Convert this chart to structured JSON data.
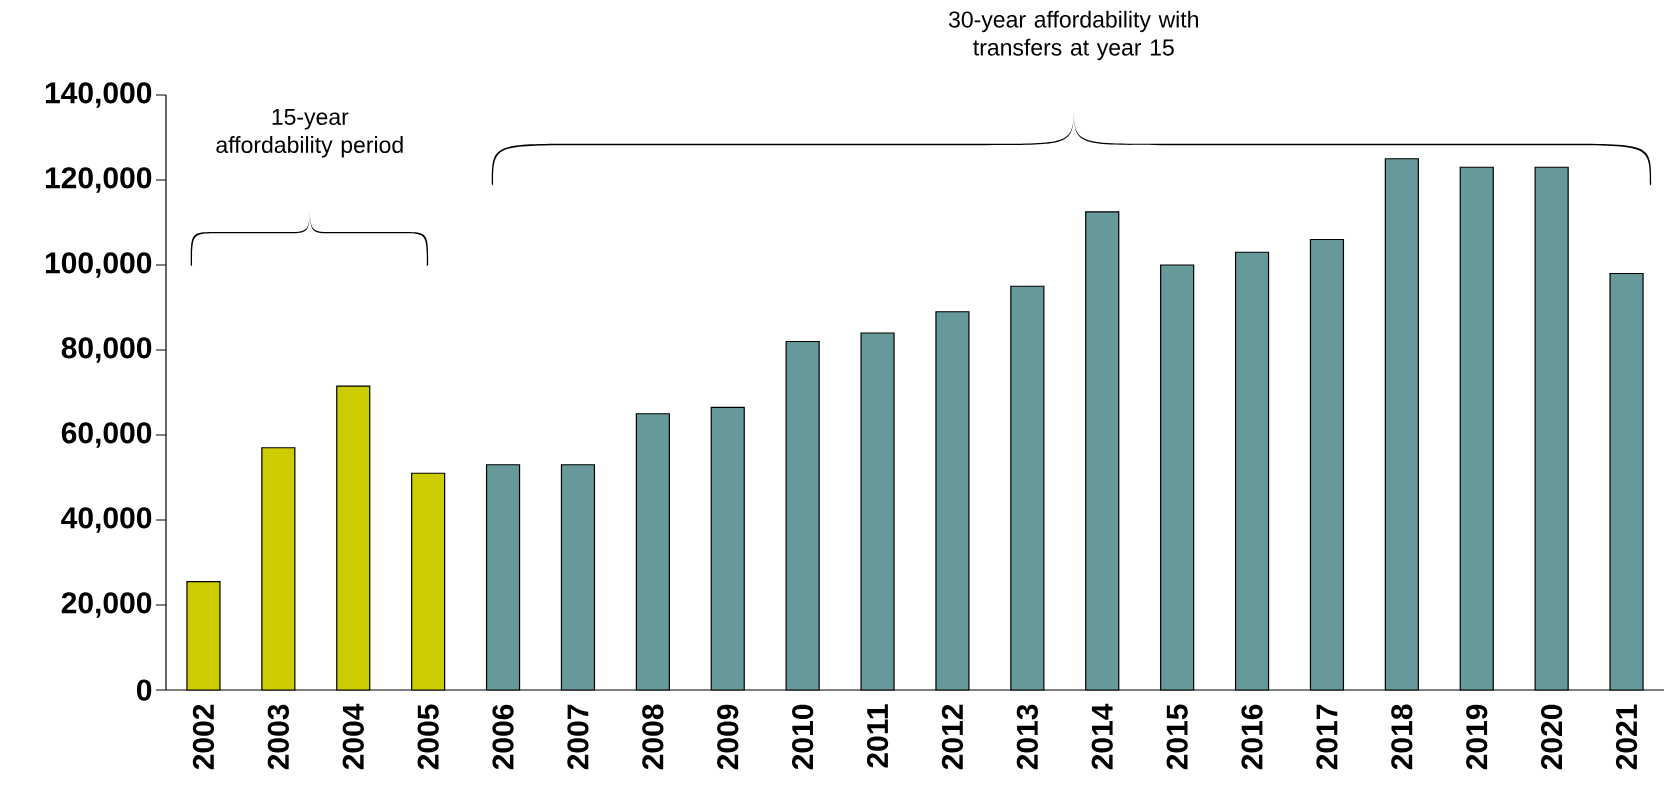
{
  "chart_data": {
    "type": "bar",
    "categories": [
      "2002",
      "2003",
      "2004",
      "2005",
      "2006",
      "2007",
      "2008",
      "2009",
      "2010",
      "2011",
      "2012",
      "2013",
      "2014",
      "2015",
      "2016",
      "2017",
      "2018",
      "2019",
      "2020",
      "2021"
    ],
    "values": [
      25500,
      57000,
      71500,
      51000,
      53000,
      53000,
      65000,
      66500,
      82000,
      84000,
      89000,
      95000,
      112500,
      100000,
      103000,
      106000,
      125000,
      123000,
      123000,
      98000
    ],
    "colors": [
      "#cccc00",
      "#cccc00",
      "#cccc00",
      "#cccc00",
      "#669999",
      "#669999",
      "#669999",
      "#669999",
      "#669999",
      "#669999",
      "#669999",
      "#669999",
      "#669999",
      "#669999",
      "#669999",
      "#669999",
      "#669999",
      "#669999",
      "#669999",
      "#669999"
    ],
    "ylim": [
      0,
      140000
    ],
    "yticks": [
      0,
      {
        "value": 20000,
        "label": "20,000"
      },
      {
        "value": 40000,
        "label": "40,000"
      },
      {
        "value": 60000,
        "label": "60,000"
      },
      {
        "value": 80000,
        "label": "80,000"
      },
      {
        "value": 100000,
        "label": "100,000"
      },
      {
        "value": 120000,
        "label": "120,000"
      },
      {
        "value": 140000,
        "label": "140,000"
      }
    ],
    "annotations": [
      "15-year affordability period",
      "30-year affordability with transfers at year 15"
    ],
    "grid": false
  }
}
